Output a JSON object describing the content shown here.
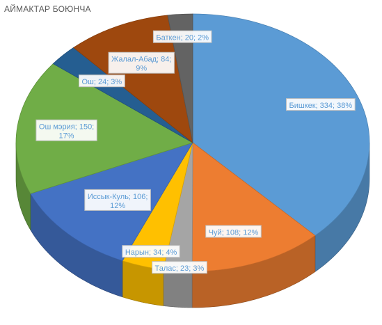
{
  "chart_data": {
    "type": "pie",
    "title": "АЙМАКТАР БОЮНЧА",
    "slices": [
      {
        "name": "Бишкек",
        "value": 334,
        "percent": "38%",
        "color": "#5b9bd5",
        "label_lines": [
          "Бишкек; 334; 38%"
        ]
      },
      {
        "name": "Чуй",
        "value": 108,
        "percent": "12%",
        "color": "#ed7d31",
        "label_lines": [
          "Чуй; 108; 12%"
        ]
      },
      {
        "name": "Талас",
        "value": 23,
        "percent": "3%",
        "color": "#a5a5a5",
        "label_lines": [
          "Талас; 23; 3%"
        ]
      },
      {
        "name": "Нарын",
        "value": 34,
        "percent": "4%",
        "color": "#ffc000",
        "label_lines": [
          "Нарын; 34; 4%"
        ]
      },
      {
        "name": "Иссык-Куль",
        "value": 106,
        "percent": "12%",
        "color": "#4472c4",
        "label_lines": [
          "Иссык-Куль; 106;",
          "12%"
        ]
      },
      {
        "name": "Ош мэрия",
        "value": 150,
        "percent": "17%",
        "color": "#70ad47",
        "label_lines": [
          "Ош мэрия;  150;",
          "17%"
        ]
      },
      {
        "name": "Ош",
        "value": 24,
        "percent": "3%",
        "color": "#255e91",
        "label_lines": [
          "Ош; 24; 3%"
        ]
      },
      {
        "name": "Жалал-Абад",
        "value": 84,
        "percent": "9%",
        "color": "#9e480e",
        "label_lines": [
          "Жалал-Абад;  84;",
          "9%"
        ]
      },
      {
        "name": "Баткен",
        "value": 20,
        "percent": "2%",
        "color": "#636363",
        "label_lines": [
          "Баткен; 20; 2%"
        ]
      }
    ],
    "legend": "none",
    "label_color": "#5b9bd5"
  }
}
